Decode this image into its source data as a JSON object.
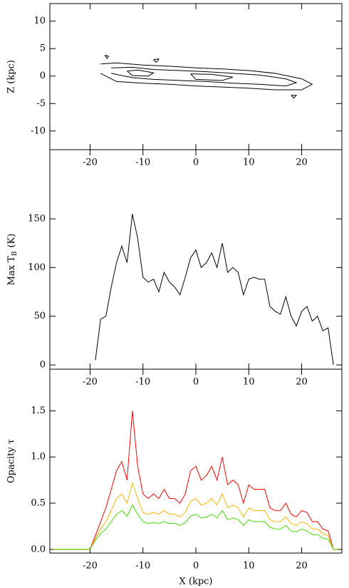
{
  "chart_data": [
    {
      "type": "contour",
      "ylabel": "Z (kpc)",
      "xlim": [
        -27.6,
        27.6
      ],
      "xticks": [
        -20,
        -10,
        0,
        10,
        20
      ],
      "ylim": [
        -13.4,
        13.2
      ],
      "yticks": [
        -10,
        -5,
        0,
        5,
        10
      ],
      "color": "#000000",
      "contours": [
        {
          "x": [
            -18,
            -15,
            -10,
            -5,
            0,
            5,
            10,
            15,
            20,
            22,
            20,
            15,
            10,
            5,
            0,
            -5,
            -10,
            -15,
            -18
          ],
          "y": [
            2.2,
            2.4,
            2.0,
            1.8,
            1.5,
            1.3,
            1.0,
            0.5,
            -0.5,
            -1.5,
            -2.5,
            -2.5,
            -2.2,
            -2.0,
            -1.8,
            -1.5,
            -1.3,
            -1.0,
            0.5
          ]
        },
        {
          "x": [
            -16,
            -12,
            -8,
            -3,
            2,
            7,
            12,
            17,
            19,
            17,
            12,
            7,
            2,
            -3,
            -8,
            -12,
            -16
          ],
          "y": [
            1.5,
            1.6,
            1.2,
            1.0,
            0.8,
            0.5,
            0.2,
            -0.5,
            -1.2,
            -1.8,
            -1.5,
            -1.3,
            -1.0,
            -0.8,
            -0.6,
            -0.3,
            0.5
          ]
        },
        {
          "x": [
            -13,
            -11,
            -8,
            -9,
            -12,
            -13
          ],
          "y": [
            0.9,
            1.1,
            0.6,
            0.0,
            0.1,
            0.9
          ]
        },
        {
          "x": [
            -1,
            3,
            7,
            5,
            0,
            -1
          ],
          "y": [
            0.4,
            0.3,
            -0.2,
            -0.8,
            -0.6,
            0.4
          ]
        },
        {
          "x": [
            -17.2,
            -16.5,
            -16.8,
            -17.2
          ],
          "y": [
            3.8,
            3.6,
            3.2,
            3.8
          ]
        },
        {
          "x": [
            -8,
            -7,
            -7.5,
            -8
          ],
          "y": [
            3.0,
            3.1,
            2.5,
            3.0
          ]
        },
        {
          "x": [
            18,
            19,
            18.5,
            18
          ],
          "y": [
            -3.5,
            -3.5,
            -4.0,
            -3.5
          ]
        }
      ]
    },
    {
      "type": "line",
      "ylabel": [
        "Max T",
        "B",
        "(K)"
      ],
      "xlim": [
        -27.6,
        27.6
      ],
      "xticks": [
        -20,
        -10,
        0,
        10,
        20
      ],
      "ylim": [
        -4.4,
        221
      ],
      "yticks": [
        0,
        50,
        100,
        150
      ],
      "x": [
        -27,
        -26,
        -25,
        -24,
        -23,
        -22,
        -21,
        -20,
        -19,
        -18,
        -17,
        -16,
        -15,
        -14,
        -13,
        -12,
        -11,
        -10,
        -9,
        -8,
        -7,
        -6,
        -5,
        -4,
        -3,
        -2,
        -1,
        0,
        1,
        2,
        3,
        4,
        5,
        6,
        7,
        8,
        9,
        10,
        11,
        12,
        13,
        14,
        15,
        16,
        17,
        18,
        19,
        20,
        21,
        22,
        23,
        24,
        25,
        26,
        27
      ],
      "series": [
        {
          "color": "#000000",
          "values": [
            null,
            null,
            null,
            null,
            null,
            null,
            null,
            null,
            5,
            47,
            50,
            80,
            105,
            122,
            105,
            155,
            130,
            90,
            85,
            88,
            75,
            95,
            85,
            80,
            72,
            90,
            110,
            118,
            100,
            105,
            115,
            100,
            125,
            95,
            100,
            95,
            72,
            88,
            90,
            88,
            88,
            60,
            55,
            52,
            70,
            50,
            40,
            55,
            60,
            45,
            50,
            35,
            38,
            0,
            null
          ]
        }
      ]
    },
    {
      "type": "line",
      "ylabel": "Opacity τ",
      "xlabel": "X (kpc)",
      "xlim": [
        -27.6,
        27.6
      ],
      "xticks": [
        -20,
        -10,
        0,
        10,
        20
      ],
      "ylim": [
        -0.04,
        1.95
      ],
      "yticks": [
        {
          "value": 0,
          "label": "0.0"
        },
        0.5,
        {
          "value": 1,
          "label": "1.0"
        },
        1.5
      ],
      "x": [
        -27,
        -26,
        -25,
        -24,
        -23,
        -22,
        -21,
        -20,
        -19,
        -18,
        -17,
        -16,
        -15,
        -14,
        -13,
        -12,
        -11,
        -10,
        -9,
        -8,
        -7,
        -6,
        -5,
        -4,
        -3,
        -2,
        -1,
        0,
        1,
        2,
        3,
        4,
        5,
        6,
        7,
        8,
        9,
        10,
        11,
        12,
        13,
        14,
        15,
        16,
        17,
        18,
        19,
        20,
        21,
        22,
        23,
        24,
        25,
        26,
        27
      ],
      "series": [
        {
          "color": "#ff0000",
          "values": [
            0,
            0,
            0,
            0,
            0,
            0,
            0,
            0,
            0.15,
            0.3,
            0.45,
            0.65,
            0.85,
            0.95,
            0.75,
            1.5,
            0.9,
            0.6,
            0.55,
            0.6,
            0.55,
            0.65,
            0.55,
            0.55,
            0.5,
            0.6,
            0.85,
            0.9,
            0.75,
            0.8,
            0.9,
            0.75,
            1.0,
            0.7,
            0.75,
            0.7,
            0.5,
            0.7,
            0.65,
            0.65,
            0.65,
            0.45,
            0.42,
            0.42,
            0.5,
            0.38,
            0.35,
            0.42,
            0.4,
            0.3,
            0.3,
            0.22,
            0.2,
            0,
            0
          ]
        },
        {
          "color": "#ffb400",
          "values": [
            0,
            0,
            0,
            0,
            0,
            0,
            0,
            0,
            0.12,
            0.22,
            0.3,
            0.42,
            0.55,
            0.6,
            0.5,
            0.72,
            0.55,
            0.4,
            0.38,
            0.4,
            0.38,
            0.42,
            0.38,
            0.38,
            0.35,
            0.4,
            0.52,
            0.55,
            0.48,
            0.5,
            0.55,
            0.48,
            0.6,
            0.45,
            0.48,
            0.45,
            0.35,
            0.45,
            0.42,
            0.42,
            0.42,
            0.32,
            0.3,
            0.3,
            0.35,
            0.28,
            0.26,
            0.3,
            0.28,
            0.22,
            0.22,
            0.17,
            0.15,
            0,
            0
          ]
        },
        {
          "color": "#44dd00",
          "values": [
            0,
            0,
            0,
            0,
            0,
            0,
            0,
            0,
            0.1,
            0.17,
            0.22,
            0.3,
            0.38,
            0.42,
            0.36,
            0.48,
            0.38,
            0.3,
            0.28,
            0.29,
            0.28,
            0.3,
            0.28,
            0.28,
            0.26,
            0.29,
            0.36,
            0.38,
            0.34,
            0.35,
            0.38,
            0.34,
            0.42,
            0.32,
            0.34,
            0.32,
            0.26,
            0.32,
            0.3,
            0.3,
            0.3,
            0.24,
            0.22,
            0.22,
            0.26,
            0.2,
            0.19,
            0.22,
            0.2,
            0.16,
            0.16,
            0.12,
            0.11,
            0,
            0
          ]
        }
      ]
    }
  ]
}
